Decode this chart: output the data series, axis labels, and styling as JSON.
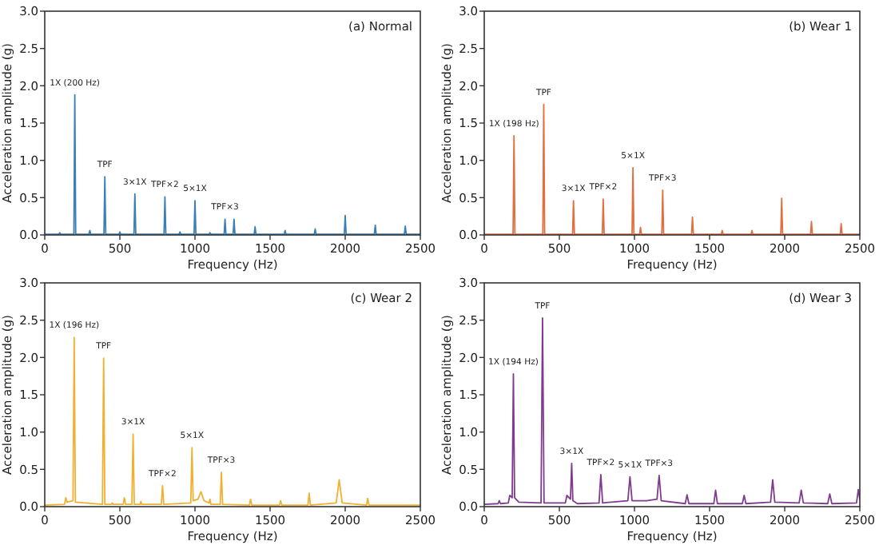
{
  "chart_data": [
    {
      "type": "line",
      "title": "(a) Normal",
      "xlabel": "Frequency (Hz)",
      "ylabel": "Acceleration amplitude (g)",
      "xlim": [
        0,
        2500
      ],
      "xticks": [
        0,
        500,
        1000,
        1500,
        2000,
        2500
      ],
      "ylim": [
        0,
        3
      ],
      "yticks": [
        {
          "value": 0,
          "label": "0.0"
        },
        {
          "value": 0.5,
          "label": "0.5"
        },
        {
          "value": 1,
          "label": "1.0"
        },
        {
          "value": 1.5,
          "label": "1.5"
        },
        {
          "value": 2,
          "label": "2.0"
        },
        {
          "value": 2.5,
          "label": "2.5"
        },
        {
          "value": 3,
          "label": "3.0"
        }
      ],
      "series": [
        {
          "color": "#3a7fb5",
          "x": [
            0,
            94,
            100,
            106,
            194,
            200,
            206,
            294,
            300,
            306,
            394,
            400,
            406,
            494,
            500,
            506,
            594,
            600,
            606,
            794,
            800,
            806,
            894,
            900,
            906,
            994,
            1000,
            1006,
            1094,
            1100,
            1106,
            1194,
            1200,
            1206,
            1254,
            1260,
            1266,
            1394,
            1400,
            1406,
            1594,
            1600,
            1606,
            1794,
            1800,
            1806,
            1994,
            2000,
            2006,
            2194,
            2200,
            2206,
            2394,
            2400,
            2406,
            2500
          ],
          "values": [
            0.01,
            0.01,
            0.03,
            0.01,
            0.01,
            1.88,
            0.01,
            0.01,
            0.06,
            0.01,
            0.01,
            0.78,
            0.01,
            0.01,
            0.04,
            0.01,
            0.01,
            0.55,
            0.01,
            0.01,
            0.51,
            0.01,
            0.01,
            0.04,
            0.01,
            0.01,
            0.46,
            0.01,
            0.01,
            0.03,
            0.01,
            0.01,
            0.21,
            0.01,
            0.01,
            0.21,
            0.01,
            0.01,
            0.11,
            0.01,
            0.01,
            0.06,
            0.01,
            0.01,
            0.08,
            0.01,
            0.01,
            0.26,
            0.01,
            0.01,
            0.13,
            0.01,
            0.01,
            0.12,
            0.01,
            0.01
          ]
        }
      ],
      "annotations": [
        {
          "text": "1X (200 Hz)",
          "x": 200,
          "y": 1.88
        },
        {
          "text": "TPF",
          "x": 400,
          "y": 0.78
        },
        {
          "text": "3×1X",
          "x": 600,
          "y": 0.55
        },
        {
          "text": "TPF×2",
          "x": 800,
          "y": 0.51
        },
        {
          "text": "5×1X",
          "x": 1000,
          "y": 0.46
        },
        {
          "text": "TPF×3",
          "x": 1200,
          "y": 0.21
        }
      ]
    },
    {
      "type": "line",
      "title": "(b) Wear 1",
      "xlabel": "Frequency (Hz)",
      "ylabel": "Acceleration amplitude (g)",
      "xlim": [
        0,
        2500
      ],
      "xticks": [
        0,
        500,
        1000,
        1500,
        2000,
        2500
      ],
      "ylim": [
        0,
        3
      ],
      "yticks": [
        {
          "value": 0,
          "label": "0.0"
        },
        {
          "value": 0.5,
          "label": "0.5"
        },
        {
          "value": 1,
          "label": "1.0"
        },
        {
          "value": 1.5,
          "label": "1.5"
        },
        {
          "value": 2,
          "label": "2.0"
        },
        {
          "value": 2.5,
          "label": "2.5"
        },
        {
          "value": 3,
          "label": "3.0"
        }
      ],
      "series": [
        {
          "color": "#e07040",
          "x": [
            0,
            192,
            198,
            204,
            390,
            396,
            402,
            588,
            594,
            600,
            786,
            792,
            798,
            984,
            990,
            996,
            1034,
            1040,
            1046,
            1182,
            1188,
            1194,
            1380,
            1386,
            1392,
            1578,
            1584,
            1590,
            1776,
            1782,
            1788,
            1974,
            1980,
            1986,
            2172,
            2178,
            2184,
            2370,
            2376,
            2382,
            2500
          ],
          "values": [
            0.01,
            0.01,
            1.33,
            0.01,
            0.01,
            1.75,
            0.01,
            0.01,
            0.46,
            0.01,
            0.01,
            0.48,
            0.01,
            0.01,
            0.9,
            0.01,
            0.01,
            0.1,
            0.01,
            0.01,
            0.6,
            0.01,
            0.01,
            0.24,
            0.01,
            0.01,
            0.06,
            0.01,
            0.01,
            0.06,
            0.01,
            0.01,
            0.49,
            0.01,
            0.01,
            0.18,
            0.01,
            0.01,
            0.15,
            0.01,
            0.01
          ]
        }
      ],
      "annotations": [
        {
          "text": "1X (198 Hz)",
          "x": 198,
          "y": 1.33
        },
        {
          "text": "TPF",
          "x": 396,
          "y": 1.75
        },
        {
          "text": "3×1X",
          "x": 594,
          "y": 0.46
        },
        {
          "text": "TPF×2",
          "x": 792,
          "y": 0.48
        },
        {
          "text": "5×1X",
          "x": 990,
          "y": 0.9
        },
        {
          "text": "TPF×3",
          "x": 1188,
          "y": 0.6
        }
      ]
    },
    {
      "type": "line",
      "title": "(c) Wear 2",
      "xlabel": "Frequency (Hz)",
      "ylabel": "Acceleration amplitude (g)",
      "xlim": [
        0,
        2500
      ],
      "xticks": [
        0,
        500,
        1000,
        1500,
        2000,
        2500
      ],
      "ylim": [
        0,
        3
      ],
      "yticks": [
        {
          "value": 0,
          "label": "0.0"
        },
        {
          "value": 0.5,
          "label": "0.5"
        },
        {
          "value": 1,
          "label": "1.0"
        },
        {
          "value": 1.5,
          "label": "1.5"
        },
        {
          "value": 2,
          "label": "2.0"
        },
        {
          "value": 2.5,
          "label": "2.5"
        },
        {
          "value": 3,
          "label": "3.0"
        }
      ],
      "series": [
        {
          "color": "#f0b030",
          "x": [
            0,
            132,
            140,
            148,
            188,
            196,
            204,
            384,
            392,
            400,
            444,
            450,
            456,
            522,
            530,
            538,
            580,
            588,
            596,
            634,
            640,
            646,
            776,
            784,
            792,
            972,
            980,
            988,
            1020,
            1040,
            1060,
            1094,
            1100,
            1106,
            1168,
            1176,
            1184,
            1362,
            1370,
            1378,
            1562,
            1570,
            1578,
            1752,
            1760,
            1768,
            1940,
            1960,
            1980,
            2142,
            2150,
            2158,
            2500
          ],
          "values": [
            0.02,
            0.03,
            0.12,
            0.06,
            0.08,
            2.27,
            0.06,
            0.03,
            1.99,
            0.03,
            0.03,
            0.05,
            0.03,
            0.03,
            0.12,
            0.03,
            0.03,
            0.97,
            0.03,
            0.03,
            0.07,
            0.03,
            0.03,
            0.28,
            0.03,
            0.05,
            0.79,
            0.08,
            0.1,
            0.2,
            0.08,
            0.05,
            0.1,
            0.03,
            0.03,
            0.46,
            0.03,
            0.02,
            0.1,
            0.02,
            0.02,
            0.08,
            0.02,
            0.02,
            0.18,
            0.02,
            0.05,
            0.36,
            0.05,
            0.02,
            0.11,
            0.02,
            0.02
          ]
        }
      ],
      "annotations": [
        {
          "text": "1X (196 Hz)",
          "x": 196,
          "y": 2.27
        },
        {
          "text": "TPF",
          "x": 392,
          "y": 1.99
        },
        {
          "text": "3×1X",
          "x": 588,
          "y": 0.97
        },
        {
          "text": "TPF×2",
          "x": 784,
          "y": 0.28
        },
        {
          "text": "5×1X",
          "x": 980,
          "y": 0.79
        },
        {
          "text": "TPF×3",
          "x": 1176,
          "y": 0.46
        }
      ]
    },
    {
      "type": "line",
      "title": "(d) Wear 3",
      "xlabel": "Frequency (Hz)",
      "ylabel": "Acceleration amplitude (g)",
      "xlim": [
        0,
        2500
      ],
      "xticks": [
        0,
        500,
        1000,
        1500,
        2000,
        2500
      ],
      "ylim": [
        0,
        3
      ],
      "yticks": [
        {
          "value": 0,
          "label": "0.0"
        },
        {
          "value": 0.5,
          "label": "0.5"
        },
        {
          "value": 1,
          "label": "1.0"
        },
        {
          "value": 1.5,
          "label": "1.5"
        },
        {
          "value": 2,
          "label": "2.0"
        },
        {
          "value": 2.5,
          "label": "2.5"
        },
        {
          "value": 3,
          "label": "3.0"
        }
      ],
      "series": [
        {
          "color": "#803a90",
          "x": [
            0,
            92,
            100,
            108,
            160,
            170,
            186,
            194,
            202,
            230,
            378,
            388,
            398,
            540,
            550,
            574,
            582,
            590,
            620,
            764,
            776,
            788,
            956,
            970,
            984,
            1080,
            1150,
            1164,
            1178,
            1338,
            1350,
            1362,
            1528,
            1540,
            1552,
            1718,
            1730,
            1742,
            1906,
            1920,
            1934,
            2096,
            2110,
            2124,
            2286,
            2300,
            2314,
            2478,
            2490,
            2500
          ],
          "values": [
            0.03,
            0.04,
            0.08,
            0.04,
            0.05,
            0.15,
            0.12,
            1.78,
            0.12,
            0.06,
            0.05,
            2.53,
            0.05,
            0.05,
            0.15,
            0.1,
            0.58,
            0.08,
            0.04,
            0.05,
            0.43,
            0.05,
            0.08,
            0.4,
            0.08,
            0.08,
            0.1,
            0.42,
            0.08,
            0.04,
            0.16,
            0.04,
            0.04,
            0.22,
            0.04,
            0.04,
            0.15,
            0.04,
            0.06,
            0.36,
            0.06,
            0.05,
            0.22,
            0.05,
            0.04,
            0.17,
            0.04,
            0.05,
            0.23,
            0.1
          ]
        }
      ],
      "annotations": [
        {
          "text": "1X (194 Hz)",
          "x": 194,
          "y": 1.78
        },
        {
          "text": "TPF",
          "x": 388,
          "y": 2.53
        },
        {
          "text": "3×1X",
          "x": 582,
          "y": 0.58
        },
        {
          "text": "TPF×2",
          "x": 776,
          "y": 0.43
        },
        {
          "text": "5×1X",
          "x": 970,
          "y": 0.4
        },
        {
          "text": "TPF×3",
          "x": 1164,
          "y": 0.42
        }
      ]
    }
  ]
}
